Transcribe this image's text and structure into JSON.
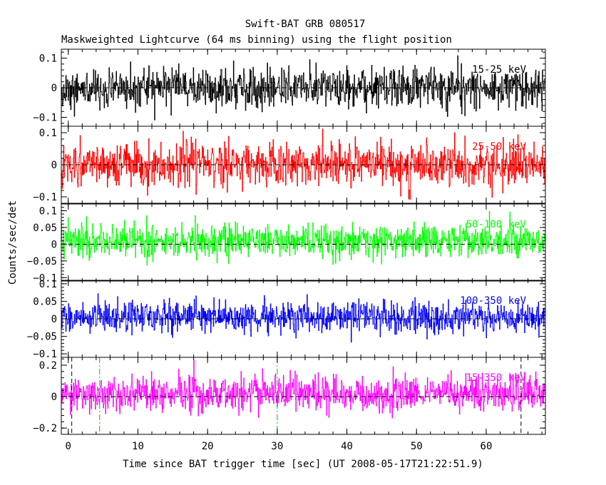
{
  "chart_data": {
    "type": "line",
    "title": "Swift-BAT GRB 080517",
    "subtitle": "Maskweighted Lightcurve (64 ms binning) using the flight position",
    "xlabel": "Time since BAT trigger time [sec] (UT 2008-05-17T21:22:51.9)",
    "ylabel": "Counts/sec/det",
    "xlim": [
      -1,
      68.5
    ],
    "xticks": [
      0,
      10,
      20,
      30,
      40,
      50,
      60
    ],
    "grid": false,
    "bin_width_sec": 0.064,
    "panels": [
      {
        "band": "15-25 keV",
        "color": "#000000",
        "ylim": [
          -0.13,
          0.13
        ],
        "yticks": [
          -0.1,
          0,
          0.1
        ],
        "ytick_labels": [
          "−0.1",
          "0",
          "0.1"
        ],
        "noise_sigma": 0.032,
        "series": [
          {
            "name": "15-25 keV",
            "mean": 0.0
          }
        ]
      },
      {
        "band": "25-50 keV",
        "color": "#ff0000",
        "ylim": [
          -0.12,
          0.12
        ],
        "yticks": [
          -0.1,
          0,
          0.1
        ],
        "ytick_labels": [
          "−0.1",
          "0",
          "0.1"
        ],
        "noise_sigma": 0.033,
        "series": [
          {
            "name": "25-50 keV",
            "mean": 0.0
          }
        ]
      },
      {
        "band": "50-100 keV",
        "color": "#00ff00",
        "ylim": [
          -0.11,
          0.12
        ],
        "yticks": [
          -0.1,
          -0.05,
          0,
          0.05,
          0.1
        ],
        "ytick_labels": [
          "−0.1",
          "−0.05",
          "0",
          "0.05",
          "0.1"
        ],
        "noise_sigma": 0.024,
        "series": [
          {
            "name": "50-100 keV",
            "mean": 0.01
          }
        ]
      },
      {
        "band": "100-350 keV",
        "color": "#0000ff",
        "ylim": [
          -0.11,
          0.11
        ],
        "yticks": [
          -0.1,
          -0.05,
          0,
          0.05,
          0.1
        ],
        "ytick_labels": [
          "−0.1",
          "−0.05",
          "0",
          "0.05",
          "0.1"
        ],
        "noise_sigma": 0.022,
        "series": [
          {
            "name": "100-350 keV",
            "mean": 0.005
          }
        ]
      },
      {
        "band": "15-350 keV",
        "color": "#ff00ff",
        "ylim": [
          -0.24,
          0.25
        ],
        "yticks": [
          -0.2,
          0,
          0.2
        ],
        "ytick_labels": [
          "−0.2",
          "0",
          "0.2"
        ],
        "noise_sigma": 0.055,
        "series": [
          {
            "name": "15-350 keV",
            "mean": 0.02
          }
        ],
        "markers": [
          {
            "kind": "black-dashed",
            "x": 0.5
          },
          {
            "kind": "green-dashdot",
            "x": 4.5
          },
          {
            "kind": "green-dashdot",
            "x": 30.0
          },
          {
            "kind": "black-dashed",
            "x": 65.0
          }
        ]
      }
    ]
  }
}
